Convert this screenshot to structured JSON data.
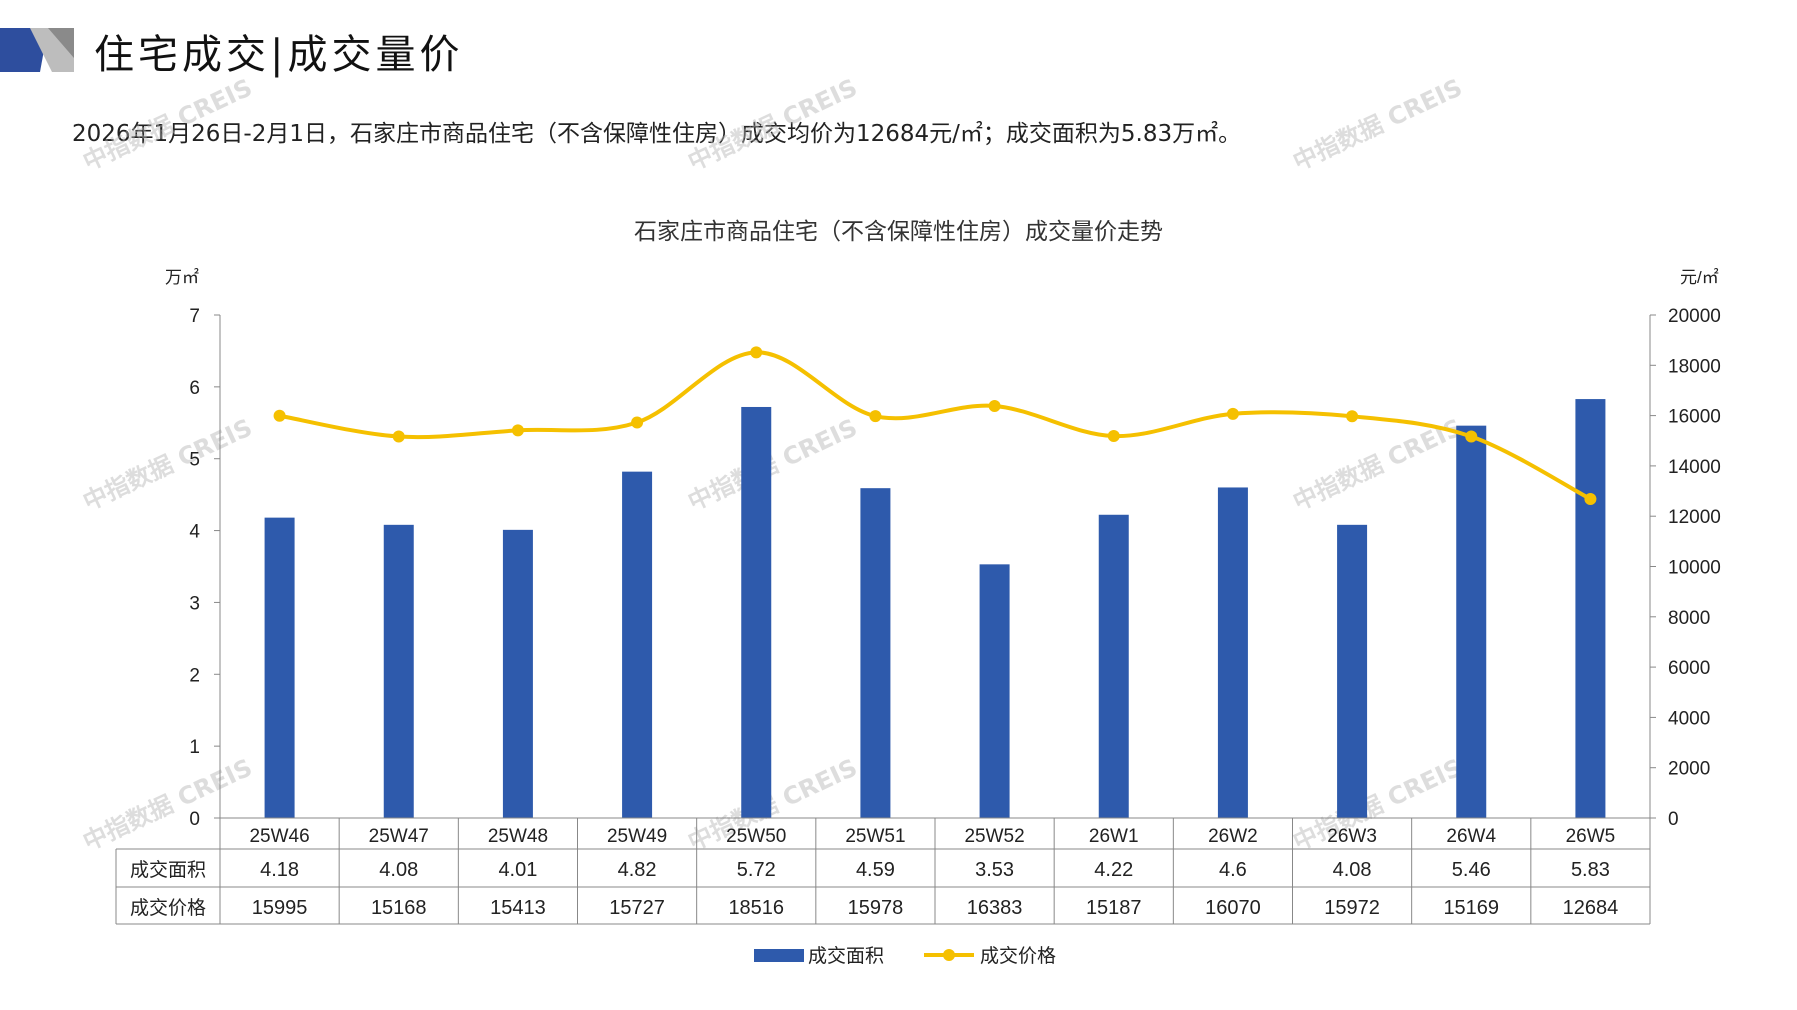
{
  "header": {
    "title": "住宅成交|成交量价"
  },
  "summary": "2026年1月26日-2月1日，石家庄市商品住宅（不含保障性住房）成交均价为12684元/㎡；成交面积为5.83万㎡。",
  "watermark": "中指数据 CREIS",
  "chart_data": {
    "type": "bar",
    "title": "石家庄市商品住宅（不含保障性住房）成交量价走势",
    "categories": [
      "25W46",
      "25W47",
      "25W48",
      "25W49",
      "25W50",
      "25W51",
      "25W52",
      "26W1",
      "26W2",
      "26W3",
      "26W4",
      "26W5"
    ],
    "series": [
      {
        "name": "成交面积",
        "type": "bar",
        "axis": "left",
        "color": "#2E5AAC",
        "values": [
          4.18,
          4.08,
          4.01,
          4.82,
          5.72,
          4.59,
          3.53,
          4.22,
          4.6,
          4.08,
          5.46,
          5.83
        ],
        "labels": [
          "4.18",
          "4.08",
          "4.01",
          "4.82",
          "5.72",
          "4.59",
          "3.53",
          "4.22",
          "4.6",
          "4.08",
          "5.46",
          "5.83"
        ]
      },
      {
        "name": "成交价格",
        "type": "line",
        "axis": "right",
        "color": "#F5C000",
        "values": [
          15995,
          15168,
          15413,
          15727,
          18516,
          15978,
          16383,
          15187,
          16070,
          15972,
          15169,
          12684
        ]
      }
    ],
    "ylabel_left": "万㎡",
    "ylim_left": [
      0,
      7
    ],
    "yticks_left": [
      0,
      1,
      2,
      3,
      4,
      5,
      6,
      7
    ],
    "ylabel_right": "元/㎡",
    "ylim_right": [
      0,
      20000
    ],
    "yticks_right": [
      0,
      2000,
      4000,
      6000,
      8000,
      10000,
      12000,
      14000,
      16000,
      18000,
      20000
    ],
    "legend": "bottom",
    "grid": false
  }
}
